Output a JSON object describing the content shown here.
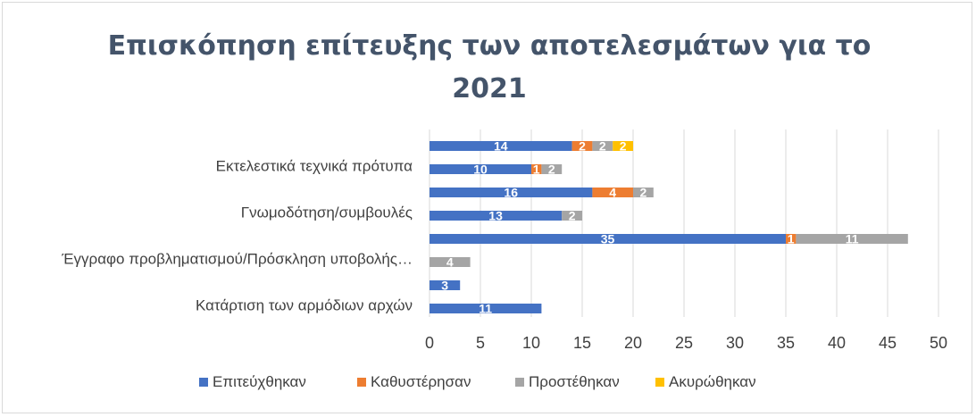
{
  "chart_data": {
    "type": "bar",
    "orientation": "horizontal",
    "stacked": true,
    "title_lines": [
      "Επισκόπηση επίτευξης των αποτελεσμάτων για το",
      "2021"
    ],
    "categories": [
      "",
      "Εκτελεστικά τεχνικά πρότυπα",
      "",
      "Γνωμοδότηση/συμβουλές",
      "",
      "Έγγραφο προβληματισμού/Πρόσκληση υποβολής…",
      "",
      "Κατάρτιση των αρμόδιων αρχών"
    ],
    "series": [
      {
        "name": "Επιτεύχθηκαν",
        "color": "#4472c4",
        "values": [
          14,
          10,
          16,
          13,
          35,
          0,
          3,
          11
        ]
      },
      {
        "name": "Καθυστέρησαν",
        "color": "#ed7d31",
        "values": [
          2,
          1,
          4,
          0,
          1,
          0,
          0,
          0
        ]
      },
      {
        "name": "Προστέθηκαν",
        "color": "#a5a5a5",
        "values": [
          2,
          2,
          2,
          2,
          11,
          4,
          0,
          0
        ]
      },
      {
        "name": "Ακυρώθηκαν",
        "color": "#ffc000",
        "values": [
          2,
          0,
          0,
          0,
          0,
          0,
          0,
          0
        ]
      }
    ],
    "xlim": [
      0,
      50
    ],
    "xticks": [
      "0",
      "5",
      "10",
      "15",
      "20",
      "25",
      "30",
      "35",
      "40",
      "45",
      "50"
    ],
    "grid": true,
    "legend_position": "bottom"
  }
}
